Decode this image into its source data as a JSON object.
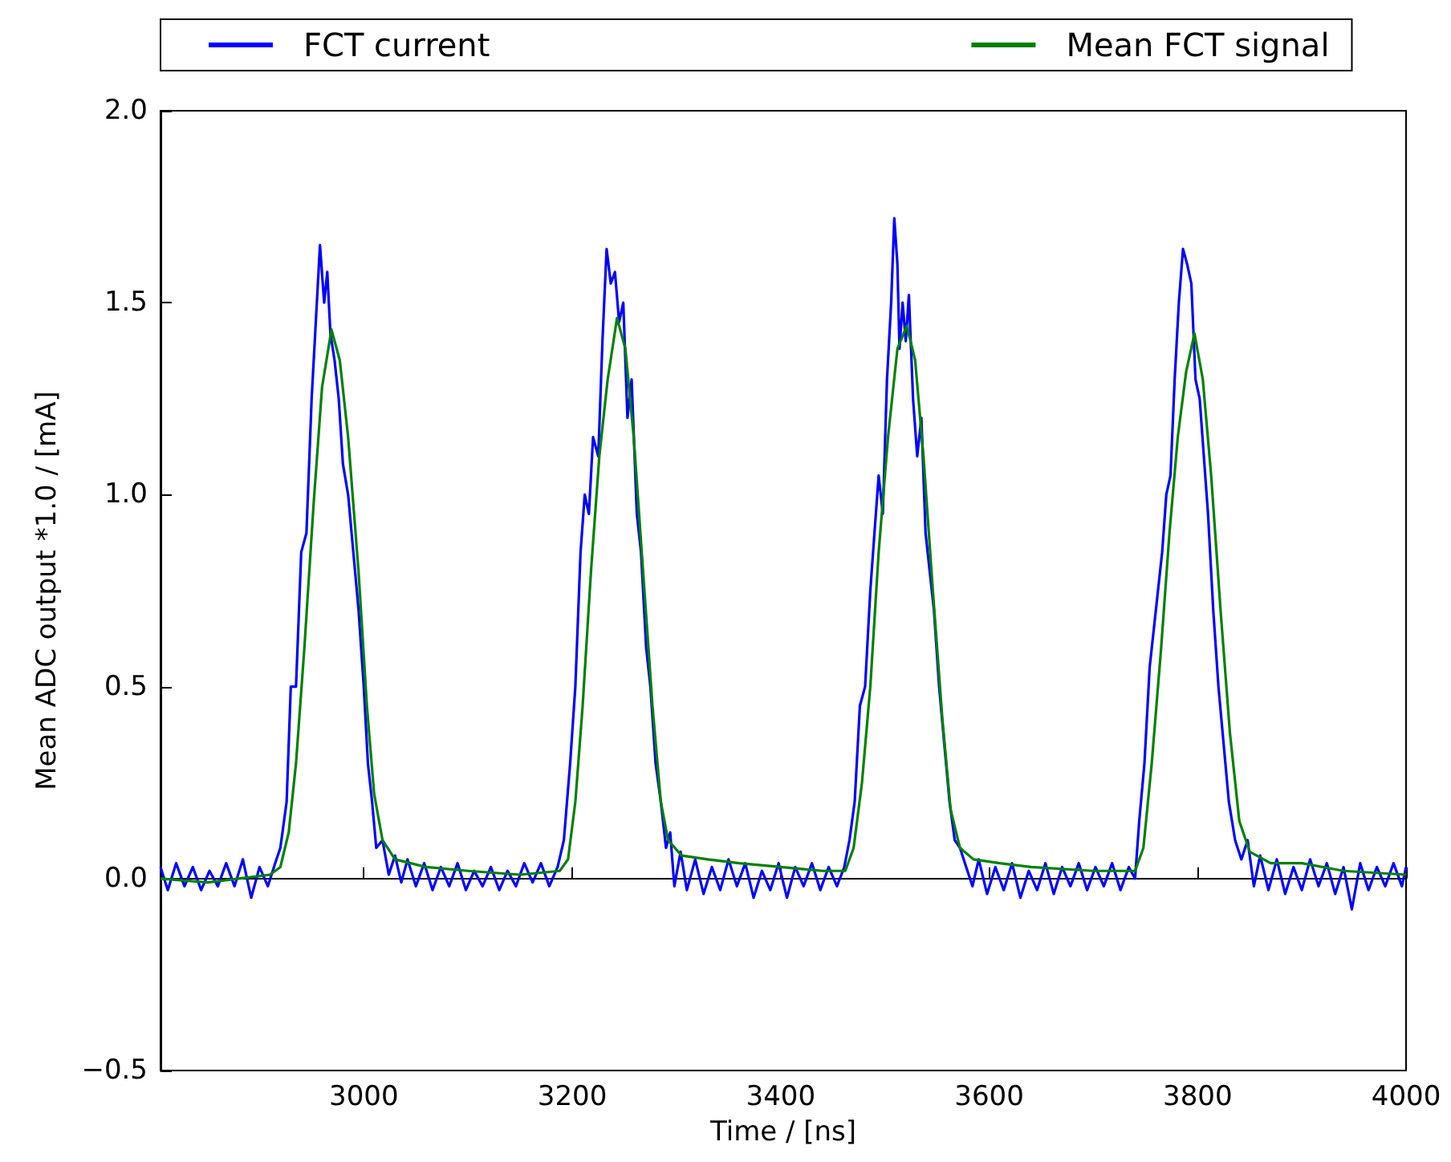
{
  "chart_data": {
    "type": "line",
    "xlabel": "Time / [ns]",
    "ylabel": "Mean ADC output *1.0 / [mA]",
    "xlim": [
      2805,
      4000
    ],
    "xticks": [
      3000,
      3200,
      3400,
      3600,
      3800,
      4000
    ],
    "ylim": [
      -0.5,
      2.0
    ],
    "yticks": [
      {
        "value": -0.5,
        "label": "−0.5"
      },
      {
        "value": 0,
        "label": "0.0"
      },
      {
        "value": 0.5,
        "label": "0.5"
      },
      {
        "value": 1,
        "label": "1.0"
      },
      {
        "value": 1.5,
        "label": "1.5"
      },
      {
        "value": 2,
        "label": "2.0"
      }
    ],
    "legend": "top",
    "marker": "none",
    "line_style": "solid",
    "series": [
      {
        "name": "FCT current",
        "color": "#0000ff",
        "x": [
          2805,
          2812,
          2820,
          2828,
          2836,
          2844,
          2852,
          2860,
          2868,
          2876,
          2884,
          2892,
          2900,
          2908,
          2915,
          2920,
          2926,
          2930,
          2935,
          2940,
          2945,
          2950,
          2954,
          2958,
          2962,
          2965,
          2968,
          2972,
          2976,
          2980,
          2985,
          2990,
          2995,
          3000,
          3004,
          3008,
          3012,
          3018,
          3024,
          3030,
          3036,
          3042,
          3050,
          3058,
          3066,
          3074,
          3082,
          3090,
          3098,
          3106,
          3114,
          3122,
          3130,
          3138,
          3146,
          3154,
          3162,
          3170,
          3178,
          3186,
          3192,
          3198,
          3203,
          3208,
          3212,
          3216,
          3220,
          3225,
          3229,
          3233,
          3237,
          3241,
          3245,
          3249,
          3253,
          3257,
          3262,
          3266,
          3271,
          3275,
          3280,
          3285,
          3290,
          3294,
          3298,
          3304,
          3310,
          3318,
          3326,
          3334,
          3342,
          3350,
          3358,
          3366,
          3374,
          3382,
          3390,
          3398,
          3406,
          3414,
          3422,
          3430,
          3438,
          3446,
          3454,
          3461,
          3466,
          3471,
          3476,
          3481,
          3486,
          3490,
          3494,
          3498,
          3502,
          3506,
          3509,
          3512,
          3514,
          3517,
          3520,
          3523,
          3527,
          3531,
          3535,
          3539,
          3543,
          3547,
          3552,
          3557,
          3562,
          3567,
          3572,
          3578,
          3584,
          3590,
          3598,
          3606,
          3614,
          3622,
          3630,
          3638,
          3646,
          3654,
          3662,
          3670,
          3678,
          3686,
          3694,
          3702,
          3710,
          3718,
          3726,
          3734,
          3740,
          3744,
          3749,
          3754,
          3758,
          3762,
          3766,
          3770,
          3774,
          3778,
          3782,
          3786,
          3790,
          3794,
          3798,
          3802,
          3806,
          3810,
          3815,
          3820,
          3825,
          3830,
          3836,
          3842,
          3848,
          3854,
          3860,
          3868,
          3876,
          3884,
          3892,
          3900,
          3908,
          3916,
          3924,
          3932,
          3940,
          3948,
          3956,
          3964,
          3972,
          3980,
          3988,
          3996,
          4000
        ],
        "values": [
          0.03,
          -0.03,
          0.04,
          -0.02,
          0.03,
          -0.03,
          0.02,
          -0.02,
          0.04,
          -0.02,
          0.05,
          -0.05,
          0.03,
          -0.02,
          0.04,
          0.08,
          0.2,
          0.5,
          0.5,
          0.85,
          0.9,
          1.25,
          1.45,
          1.65,
          1.5,
          1.58,
          1.42,
          1.35,
          1.25,
          1.08,
          1.0,
          0.85,
          0.7,
          0.5,
          0.3,
          0.2,
          0.08,
          0.1,
          0.01,
          0.06,
          -0.01,
          0.05,
          -0.02,
          0.04,
          -0.03,
          0.03,
          -0.02,
          0.04,
          -0.03,
          0.02,
          -0.02,
          0.03,
          -0.03,
          0.02,
          -0.02,
          0.04,
          -0.01,
          0.04,
          -0.02,
          0.03,
          0.1,
          0.3,
          0.5,
          0.85,
          1.0,
          0.95,
          1.15,
          1.1,
          1.4,
          1.64,
          1.55,
          1.58,
          1.45,
          1.5,
          1.2,
          1.3,
          0.95,
          0.85,
          0.6,
          0.5,
          0.3,
          0.2,
          0.08,
          0.12,
          -0.02,
          0.07,
          -0.03,
          0.05,
          -0.04,
          0.03,
          -0.03,
          0.05,
          -0.02,
          0.04,
          -0.05,
          0.02,
          -0.03,
          0.04,
          -0.05,
          0.03,
          -0.02,
          0.04,
          -0.03,
          0.03,
          -0.02,
          0.03,
          0.1,
          0.2,
          0.45,
          0.5,
          0.75,
          0.9,
          1.05,
          0.95,
          1.3,
          1.5,
          1.72,
          1.6,
          1.38,
          1.5,
          1.4,
          1.52,
          1.25,
          1.1,
          1.2,
          0.9,
          0.8,
          0.7,
          0.5,
          0.35,
          0.2,
          0.1,
          0.08,
          0.03,
          -0.02,
          0.05,
          -0.04,
          0.03,
          -0.03,
          0.04,
          -0.05,
          0.02,
          -0.03,
          0.04,
          -0.04,
          0.03,
          -0.02,
          0.04,
          -0.03,
          0.03,
          -0.02,
          0.04,
          -0.03,
          0.03,
          0.0,
          0.15,
          0.3,
          0.55,
          0.65,
          0.75,
          0.85,
          1.0,
          1.05,
          1.3,
          1.5,
          1.64,
          1.6,
          1.55,
          1.3,
          1.25,
          1.1,
          0.95,
          0.7,
          0.5,
          0.35,
          0.2,
          0.1,
          0.05,
          0.1,
          -0.02,
          0.06,
          -0.03,
          0.05,
          -0.04,
          0.03,
          -0.03,
          0.05,
          -0.02,
          0.04,
          -0.04,
          0.03,
          -0.08,
          0.04,
          -0.03,
          0.03,
          -0.02,
          0.04,
          -0.02,
          0.03
        ]
      },
      {
        "name": "Mean FCT signal",
        "color": "#008000",
        "x": [
          2805,
          2850,
          2880,
          2910,
          2920,
          2928,
          2935,
          2943,
          2952,
          2960,
          2969,
          2977,
          2985,
          2995,
          3003,
          3010,
          3018,
          3030,
          3060,
          3100,
          3150,
          3188,
          3196,
          3203,
          3210,
          3218,
          3226,
          3234,
          3243,
          3251,
          3259,
          3268,
          3277,
          3285,
          3292,
          3305,
          3330,
          3360,
          3400,
          3440,
          3462,
          3470,
          3478,
          3486,
          3494,
          3503,
          3512,
          3521,
          3529,
          3537,
          3546,
          3555,
          3563,
          3572,
          3585,
          3610,
          3640,
          3700,
          3740,
          3748,
          3756,
          3765,
          3773,
          3781,
          3789,
          3797,
          3805,
          3813,
          3822,
          3831,
          3840,
          3850,
          3870,
          3900,
          3940,
          4000
        ],
        "values": [
          0.0,
          -0.01,
          0.0,
          0.01,
          0.03,
          0.12,
          0.3,
          0.6,
          0.98,
          1.28,
          1.43,
          1.35,
          1.15,
          0.8,
          0.45,
          0.22,
          0.1,
          0.05,
          0.03,
          0.02,
          0.01,
          0.02,
          0.05,
          0.2,
          0.45,
          0.8,
          1.1,
          1.3,
          1.46,
          1.38,
          1.15,
          0.8,
          0.45,
          0.2,
          0.1,
          0.06,
          0.05,
          0.04,
          0.03,
          0.02,
          0.02,
          0.08,
          0.25,
          0.5,
          0.85,
          1.15,
          1.38,
          1.44,
          1.35,
          1.1,
          0.75,
          0.42,
          0.18,
          0.08,
          0.05,
          0.04,
          0.03,
          0.02,
          0.02,
          0.08,
          0.3,
          0.6,
          0.9,
          1.15,
          1.32,
          1.42,
          1.3,
          1.05,
          0.7,
          0.38,
          0.15,
          0.07,
          0.04,
          0.04,
          0.02,
          0.01
        ]
      }
    ]
  }
}
